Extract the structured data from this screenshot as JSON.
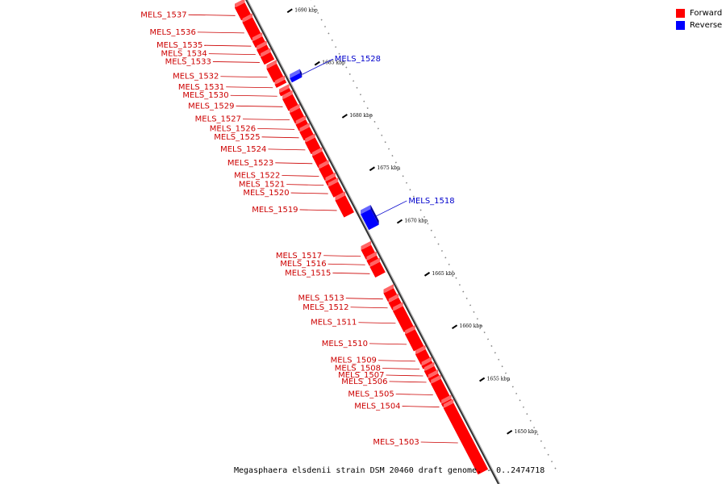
{
  "colors": {
    "forward": "#ff0000",
    "reverse": "#0000ff",
    "leader_forward": "#cc0000",
    "leader_reverse": "#0000cc"
  },
  "legend": {
    "forward_label": "Forward",
    "reverse_label": "Reverse"
  },
  "caption": "Megasphaera elsdenii strain DSM 20460 draft genome. - 0..2474718",
  "scale_ticks": [
    {
      "kbp": 1690,
      "label": "1690 kbp"
    },
    {
      "kbp": 1685,
      "label": "1685 kbp"
    },
    {
      "kbp": 1680,
      "label": "1680 kbp"
    },
    {
      "kbp": 1675,
      "label": "1675 kbp"
    },
    {
      "kbp": 1670,
      "label": "1670 kbp"
    },
    {
      "kbp": 1665,
      "label": "1665 kbp"
    },
    {
      "kbp": 1660,
      "label": "1660 kbp"
    },
    {
      "kbp": 1655,
      "label": "1655 kbp"
    },
    {
      "kbp": 1650,
      "label": "1650 kbp"
    }
  ],
  "genes": [
    {
      "name": "MELS_1537",
      "strand": "forward",
      "start_kbp": 1692.3,
      "end_kbp": 1691.1
    },
    {
      "name": "MELS_1536",
      "strand": "forward",
      "start_kbp": 1690.9,
      "end_kbp": 1689.2
    },
    {
      "name": "MELS_1535",
      "strand": "forward",
      "start_kbp": 1689.1,
      "end_kbp": 1688.5
    },
    {
      "name": "MELS_1534",
      "strand": "forward",
      "start_kbp": 1688.3,
      "end_kbp": 1687.7
    },
    {
      "name": "MELS_1533",
      "strand": "forward",
      "start_kbp": 1687.6,
      "end_kbp": 1686.9
    },
    {
      "name": "MELS_1532",
      "strand": "forward",
      "start_kbp": 1686.5,
      "end_kbp": 1685.2
    },
    {
      "name": "MELS_1531",
      "strand": "forward",
      "start_kbp": 1685.0,
      "end_kbp": 1684.7
    },
    {
      "name": "MELS_1528",
      "strand": "reverse",
      "start_kbp": 1684.9,
      "end_kbp": 1684.5
    },
    {
      "name": "MELS_1530",
      "strand": "forward",
      "start_kbp": 1684.2,
      "end_kbp": 1683.9
    },
    {
      "name": "MELS_1529",
      "strand": "forward",
      "start_kbp": 1683.6,
      "end_kbp": 1682.5
    },
    {
      "name": "MELS_1527",
      "strand": "forward",
      "start_kbp": 1682.3,
      "end_kbp": 1681.3
    },
    {
      "name": "MELS_1526",
      "strand": "forward",
      "start_kbp": 1681.2,
      "end_kbp": 1680.6
    },
    {
      "name": "MELS_1525",
      "strand": "forward",
      "start_kbp": 1680.5,
      "end_kbp": 1679.7
    },
    {
      "name": "MELS_1524",
      "strand": "forward",
      "start_kbp": 1679.5,
      "end_kbp": 1678.4
    },
    {
      "name": "MELS_1523",
      "strand": "forward",
      "start_kbp": 1678.2,
      "end_kbp": 1677.1
    },
    {
      "name": "MELS_1522",
      "strand": "forward",
      "start_kbp": 1677.0,
      "end_kbp": 1675.9
    },
    {
      "name": "MELS_1521",
      "strand": "forward",
      "start_kbp": 1675.8,
      "end_kbp": 1675.4
    },
    {
      "name": "MELS_1520",
      "strand": "forward",
      "start_kbp": 1675.3,
      "end_kbp": 1674.3
    },
    {
      "name": "MELS_1519",
      "strand": "forward",
      "start_kbp": 1674.0,
      "end_kbp": 1672.4
    },
    {
      "name": "MELS_1518",
      "strand": "reverse",
      "start_kbp": 1672.0,
      "end_kbp": 1670.5
    },
    {
      "name": "MELS_1517",
      "strand": "forward",
      "start_kbp": 1669.3,
      "end_kbp": 1668.4
    },
    {
      "name": "MELS_1516",
      "strand": "forward",
      "start_kbp": 1668.3,
      "end_kbp": 1667.8
    },
    {
      "name": "MELS_1515",
      "strand": "forward",
      "start_kbp": 1667.7,
      "end_kbp": 1666.7
    },
    {
      "name": "MELS_1513",
      "strand": "forward",
      "start_kbp": 1665.2,
      "end_kbp": 1664.4
    },
    {
      "name": "MELS_1512",
      "strand": "forward",
      "start_kbp": 1664.3,
      "end_kbp": 1663.6
    },
    {
      "name": "MELS_1511",
      "strand": "forward",
      "start_kbp": 1663.5,
      "end_kbp": 1661.5
    },
    {
      "name": "MELS_1510",
      "strand": "forward",
      "start_kbp": 1661.3,
      "end_kbp": 1659.7
    },
    {
      "name": "MELS_1509",
      "strand": "forward",
      "start_kbp": 1659.4,
      "end_kbp": 1658.4
    },
    {
      "name": "MELS_1508",
      "strand": "forward",
      "start_kbp": 1658.3,
      "end_kbp": 1658.0
    },
    {
      "name": "MELS_1507",
      "strand": "forward",
      "start_kbp": 1657.8,
      "end_kbp": 1657.2
    },
    {
      "name": "MELS_1506",
      "strand": "forward",
      "start_kbp": 1657.1,
      "end_kbp": 1656.7
    },
    {
      "name": "MELS_1505",
      "strand": "forward",
      "start_kbp": 1656.6,
      "end_kbp": 1654.8
    },
    {
      "name": "MELS_1504",
      "strand": "forward",
      "start_kbp": 1654.7,
      "end_kbp": 1654.4
    },
    {
      "name": "MELS_1503",
      "strand": "forward",
      "start_kbp": 1654.3,
      "end_kbp": 1648.0
    }
  ]
}
